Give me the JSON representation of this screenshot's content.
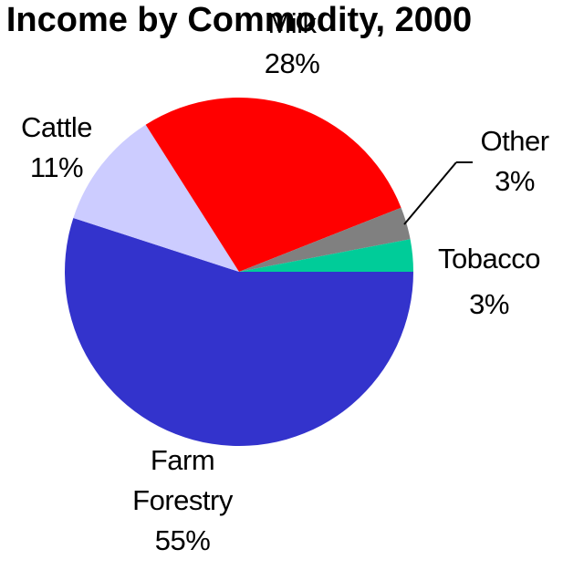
{
  "chart_data": {
    "type": "pie",
    "title": "Income by  Commodity, 2000",
    "slices": [
      {
        "name": "Farm Forestry",
        "label_lines": [
          "Farm",
          "Forestry"
        ],
        "percent_label": "55%",
        "value": 55,
        "color": "#3333cc"
      },
      {
        "name": "Cattle",
        "label_lines": [
          "Cattle"
        ],
        "percent_label": "11%",
        "value": 11,
        "color": "#ccccff"
      },
      {
        "name": "Milk",
        "label_lines": [
          "Milk"
        ],
        "percent_label": "28%",
        "value": 28,
        "color": "#ff0000"
      },
      {
        "name": "Other",
        "label_lines": [
          "Other"
        ],
        "percent_label": "3%",
        "value": 3,
        "color": "#808080"
      },
      {
        "name": "Tobacco",
        "label_lines": [
          "Tobacco"
        ],
        "percent_label": "3%",
        "value": 3,
        "color": "#00cc99"
      }
    ]
  }
}
